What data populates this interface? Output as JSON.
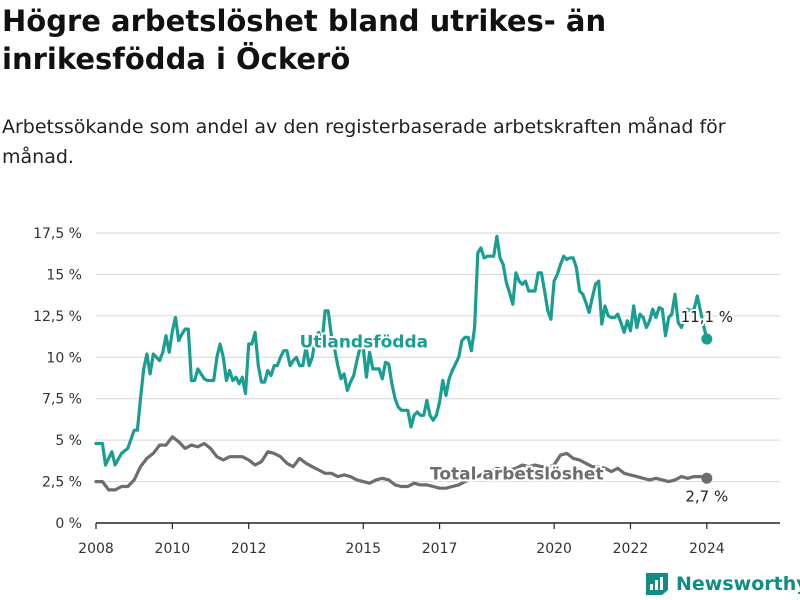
{
  "title": "Högre arbetslöshet bland utrikes- än inrikesfödda i Öckerö",
  "subtitle": "Arbetssökande som andel av den registerbaserade arbetskraften månad för månad.",
  "brand": "Newsworthy",
  "colors": {
    "utlandsfodda": "#1a9e91",
    "total": "#6d6d70",
    "brand": "#138c83"
  },
  "chart_data": {
    "type": "line",
    "title": "Högre arbetslöshet bland utrikes- än inrikesfödda i Öckerö",
    "subtitle": "Arbetssökande som andel av den registerbaserade arbetskraften månad för månad.",
    "xlabel": "",
    "ylabel": "",
    "xlim": [
      "2008-01",
      "2025-12"
    ],
    "ylim": [
      0,
      17.5
    ],
    "yticks": [
      0,
      2.5,
      5,
      7.5,
      10,
      12.5,
      15,
      17.5
    ],
    "ytick_labels": [
      "0 %",
      "2,5 %",
      "5 %",
      "7,5 %",
      "10 %",
      "12,5 %",
      "15 %",
      "17,5 %"
    ],
    "xticks": [
      "2008-01",
      "2010-01",
      "2012-01",
      "2015-01",
      "2017-01",
      "2020-01",
      "2022-01",
      "2024-01"
    ],
    "xtick_labels": [
      "2008",
      "2010",
      "2012",
      "2015",
      "2017",
      "2020",
      "2022",
      "2024"
    ],
    "grid": "horizontal",
    "series": [
      {
        "name": "Utlandsfödda",
        "label_at": "2013-05",
        "last_value_label": "11,1 %",
        "points": [
          [
            "2008-01",
            4.8
          ],
          [
            "2008-03",
            4.8
          ],
          [
            "2008-04",
            3.5
          ],
          [
            "2008-06",
            4.3
          ],
          [
            "2008-07",
            3.5
          ],
          [
            "2008-09",
            4.2
          ],
          [
            "2008-11",
            4.5
          ],
          [
            "2009-01",
            5.6
          ],
          [
            "2009-02",
            5.6
          ],
          [
            "2009-03",
            7.5
          ],
          [
            "2009-04",
            9.3
          ],
          [
            "2009-05",
            10.2
          ],
          [
            "2009-06",
            9.0
          ],
          [
            "2009-07",
            10.2
          ],
          [
            "2009-09",
            9.8
          ],
          [
            "2009-10",
            10.3
          ],
          [
            "2009-11",
            11.3
          ],
          [
            "2009-12",
            10.3
          ],
          [
            "2010-01",
            11.6
          ],
          [
            "2010-02",
            12.4
          ],
          [
            "2010-03",
            11.0
          ],
          [
            "2010-04",
            11.4
          ],
          [
            "2010-05",
            11.7
          ],
          [
            "2010-06",
            11.7
          ],
          [
            "2010-07",
            8.6
          ],
          [
            "2010-08",
            8.6
          ],
          [
            "2010-09",
            9.3
          ],
          [
            "2010-10",
            9.0
          ],
          [
            "2010-11",
            8.7
          ],
          [
            "2010-12",
            8.6
          ],
          [
            "2011-02",
            8.6
          ],
          [
            "2011-03",
            10.0
          ],
          [
            "2011-04",
            10.8
          ],
          [
            "2011-05",
            10.0
          ],
          [
            "2011-06",
            8.6
          ],
          [
            "2011-07",
            9.2
          ],
          [
            "2011-08",
            8.6
          ],
          [
            "2011-09",
            8.8
          ],
          [
            "2011-10",
            8.4
          ],
          [
            "2011-11",
            8.8
          ],
          [
            "2011-12",
            7.8
          ],
          [
            "2012-01",
            10.8
          ],
          [
            "2012-02",
            10.8
          ],
          [
            "2012-03",
            11.5
          ],
          [
            "2012-04",
            9.5
          ],
          [
            "2012-05",
            8.5
          ],
          [
            "2012-06",
            8.5
          ],
          [
            "2012-07",
            9.2
          ],
          [
            "2012-08",
            8.9
          ],
          [
            "2012-09",
            9.5
          ],
          [
            "2012-10",
            9.5
          ],
          [
            "2012-11",
            10.0
          ],
          [
            "2012-12",
            10.4
          ],
          [
            "2013-01",
            10.4
          ],
          [
            "2013-02",
            9.5
          ],
          [
            "2013-03",
            9.8
          ],
          [
            "2013-04",
            10.0
          ],
          [
            "2013-05",
            9.5
          ],
          [
            "2013-06",
            9.5
          ],
          [
            "2013-07",
            10.6
          ],
          [
            "2013-08",
            9.5
          ],
          [
            "2013-09",
            10.0
          ],
          [
            "2013-10",
            11.2
          ],
          [
            "2013-11",
            11.5
          ],
          [
            "2013-12",
            10.8
          ],
          [
            "2014-01",
            12.8
          ],
          [
            "2014-02",
            12.8
          ],
          [
            "2014-03",
            11.3
          ],
          [
            "2014-04",
            10.5
          ],
          [
            "2014-05",
            9.5
          ],
          [
            "2014-06",
            8.7
          ],
          [
            "2014-07",
            9.0
          ],
          [
            "2014-08",
            8.0
          ],
          [
            "2014-09",
            8.5
          ],
          [
            "2014-10",
            8.9
          ],
          [
            "2014-11",
            9.8
          ],
          [
            "2014-12",
            10.6
          ],
          [
            "2015-01",
            10.6
          ],
          [
            "2015-02",
            8.8
          ],
          [
            "2015-03",
            10.3
          ],
          [
            "2015-04",
            9.3
          ],
          [
            "2015-05",
            9.3
          ],
          [
            "2015-06",
            9.3
          ],
          [
            "2015-07",
            8.7
          ],
          [
            "2015-08",
            9.7
          ],
          [
            "2015-09",
            9.6
          ],
          [
            "2015-10",
            8.4
          ],
          [
            "2015-11",
            7.5
          ],
          [
            "2015-12",
            7.0
          ],
          [
            "2016-01",
            6.8
          ],
          [
            "2016-02",
            6.8
          ],
          [
            "2016-03",
            6.8
          ],
          [
            "2016-04",
            5.8
          ],
          [
            "2016-05",
            6.5
          ],
          [
            "2016-06",
            6.7
          ],
          [
            "2016-07",
            6.5
          ],
          [
            "2016-08",
            6.5
          ],
          [
            "2016-09",
            7.4
          ],
          [
            "2016-10",
            6.5
          ],
          [
            "2016-11",
            6.2
          ],
          [
            "2016-12",
            6.5
          ],
          [
            "2017-01",
            7.3
          ],
          [
            "2017-02",
            8.6
          ],
          [
            "2017-03",
            7.7
          ],
          [
            "2017-04",
            8.7
          ],
          [
            "2017-05",
            9.2
          ],
          [
            "2017-06",
            9.6
          ],
          [
            "2017-07",
            10.0
          ],
          [
            "2017-08",
            11.0
          ],
          [
            "2017-09",
            11.2
          ],
          [
            "2017-10",
            11.2
          ],
          [
            "2017-11",
            10.4
          ],
          [
            "2017-12",
            11.8
          ],
          [
            "2018-01",
            16.3
          ],
          [
            "2018-02",
            16.6
          ],
          [
            "2018-03",
            16.0
          ],
          [
            "2018-04",
            16.1
          ],
          [
            "2018-05",
            16.1
          ],
          [
            "2018-06",
            16.1
          ],
          [
            "2018-07",
            17.3
          ],
          [
            "2018-08",
            16.0
          ],
          [
            "2018-09",
            15.6
          ],
          [
            "2018-10",
            14.5
          ],
          [
            "2018-11",
            13.9
          ],
          [
            "2018-12",
            13.2
          ],
          [
            "2019-01",
            15.1
          ],
          [
            "2019-02",
            14.6
          ],
          [
            "2019-03",
            14.4
          ],
          [
            "2019-04",
            14.6
          ],
          [
            "2019-05",
            14.0
          ],
          [
            "2019-06",
            14.0
          ],
          [
            "2019-07",
            14.0
          ],
          [
            "2019-08",
            15.1
          ],
          [
            "2019-09",
            15.1
          ],
          [
            "2019-10",
            14.0
          ],
          [
            "2019-11",
            12.8
          ],
          [
            "2019-12",
            12.3
          ],
          [
            "2020-01",
            14.6
          ],
          [
            "2020-02",
            15.0
          ],
          [
            "2020-03",
            15.6
          ],
          [
            "2020-04",
            16.1
          ],
          [
            "2020-05",
            15.9
          ],
          [
            "2020-06",
            16.0
          ],
          [
            "2020-07",
            16.0
          ],
          [
            "2020-08",
            15.4
          ],
          [
            "2020-09",
            14.0
          ],
          [
            "2020-10",
            13.8
          ],
          [
            "2020-11",
            13.3
          ],
          [
            "2020-12",
            12.7
          ],
          [
            "2021-01",
            13.6
          ],
          [
            "2021-02",
            14.4
          ],
          [
            "2021-03",
            14.6
          ],
          [
            "2021-04",
            12.0
          ],
          [
            "2021-05",
            13.1
          ],
          [
            "2021-06",
            12.5
          ],
          [
            "2021-07",
            12.4
          ],
          [
            "2021-08",
            12.4
          ],
          [
            "2021-09",
            12.6
          ],
          [
            "2021-10",
            12.1
          ],
          [
            "2021-11",
            11.5
          ],
          [
            "2021-12",
            12.2
          ],
          [
            "2022-01",
            11.6
          ],
          [
            "2022-02",
            13.1
          ],
          [
            "2022-03",
            11.8
          ],
          [
            "2022-04",
            12.6
          ],
          [
            "2022-05",
            12.4
          ],
          [
            "2022-06",
            11.8
          ],
          [
            "2022-07",
            12.2
          ],
          [
            "2022-08",
            12.9
          ],
          [
            "2022-09",
            12.4
          ],
          [
            "2022-10",
            13.0
          ],
          [
            "2022-11",
            12.9
          ],
          [
            "2022-12",
            11.3
          ],
          [
            "2023-01",
            12.4
          ],
          [
            "2023-02",
            12.6
          ],
          [
            "2023-03",
            13.8
          ],
          [
            "2023-04",
            12.1
          ],
          [
            "2023-05",
            11.8
          ],
          [
            "2023-06",
            12.4
          ],
          [
            "2023-07",
            12.9
          ],
          [
            "2023-08",
            12.8
          ],
          [
            "2023-09",
            12.9
          ],
          [
            "2023-10",
            13.7
          ],
          [
            "2023-11",
            12.8
          ],
          [
            "2023-12",
            11.9
          ],
          [
            "2024-01",
            11.1
          ]
        ]
      },
      {
        "name": "Total arbetslöshet",
        "label_at": "2016-10",
        "last_value_label": "2,7 %",
        "points": [
          [
            "2008-01",
            2.5
          ],
          [
            "2008-03",
            2.5
          ],
          [
            "2008-05",
            2.0
          ],
          [
            "2008-07",
            2.0
          ],
          [
            "2008-09",
            2.2
          ],
          [
            "2008-11",
            2.2
          ],
          [
            "2009-01",
            2.6
          ],
          [
            "2009-03",
            3.4
          ],
          [
            "2009-05",
            3.9
          ],
          [
            "2009-07",
            4.2
          ],
          [
            "2009-09",
            4.7
          ],
          [
            "2009-11",
            4.7
          ],
          [
            "2010-01",
            5.2
          ],
          [
            "2010-03",
            4.9
          ],
          [
            "2010-05",
            4.5
          ],
          [
            "2010-07",
            4.7
          ],
          [
            "2010-09",
            4.6
          ],
          [
            "2010-11",
            4.8
          ],
          [
            "2011-01",
            4.5
          ],
          [
            "2011-03",
            4.0
          ],
          [
            "2011-05",
            3.8
          ],
          [
            "2011-07",
            4.0
          ],
          [
            "2011-09",
            4.0
          ],
          [
            "2011-11",
            4.0
          ],
          [
            "2012-01",
            3.8
          ],
          [
            "2012-03",
            3.5
          ],
          [
            "2012-05",
            3.7
          ],
          [
            "2012-07",
            4.3
          ],
          [
            "2012-09",
            4.2
          ],
          [
            "2012-11",
            4.0
          ],
          [
            "2013-01",
            3.6
          ],
          [
            "2013-03",
            3.4
          ],
          [
            "2013-05",
            3.9
          ],
          [
            "2013-07",
            3.6
          ],
          [
            "2013-09",
            3.4
          ],
          [
            "2013-11",
            3.2
          ],
          [
            "2014-01",
            3.0
          ],
          [
            "2014-03",
            3.0
          ],
          [
            "2014-05",
            2.8
          ],
          [
            "2014-07",
            2.9
          ],
          [
            "2014-09",
            2.8
          ],
          [
            "2014-11",
            2.6
          ],
          [
            "2015-01",
            2.5
          ],
          [
            "2015-03",
            2.4
          ],
          [
            "2015-05",
            2.6
          ],
          [
            "2015-07",
            2.7
          ],
          [
            "2015-09",
            2.6
          ],
          [
            "2015-11",
            2.3
          ],
          [
            "2016-01",
            2.2
          ],
          [
            "2016-03",
            2.2
          ],
          [
            "2016-05",
            2.4
          ],
          [
            "2016-07",
            2.3
          ],
          [
            "2016-09",
            2.3
          ],
          [
            "2016-11",
            2.2
          ],
          [
            "2017-01",
            2.1
          ],
          [
            "2017-03",
            2.1
          ],
          [
            "2017-05",
            2.2
          ],
          [
            "2017-07",
            2.3
          ],
          [
            "2017-09",
            2.5
          ],
          [
            "2017-11",
            2.7
          ],
          [
            "2018-01",
            2.8
          ],
          [
            "2018-03",
            3.0
          ],
          [
            "2018-05",
            3.1
          ],
          [
            "2018-07",
            3.3
          ],
          [
            "2018-09",
            3.2
          ],
          [
            "2018-11",
            3.2
          ],
          [
            "2019-01",
            3.3
          ],
          [
            "2019-03",
            3.5
          ],
          [
            "2019-05",
            3.4
          ],
          [
            "2019-07",
            3.5
          ],
          [
            "2019-09",
            3.4
          ],
          [
            "2019-11",
            3.4
          ],
          [
            "2020-01",
            3.5
          ],
          [
            "2020-03",
            4.1
          ],
          [
            "2020-05",
            4.2
          ],
          [
            "2020-07",
            3.9
          ],
          [
            "2020-09",
            3.8
          ],
          [
            "2020-11",
            3.6
          ],
          [
            "2021-01",
            3.4
          ],
          [
            "2021-03",
            3.4
          ],
          [
            "2021-05",
            3.3
          ],
          [
            "2021-07",
            3.1
          ],
          [
            "2021-09",
            3.3
          ],
          [
            "2021-11",
            3.0
          ],
          [
            "2022-01",
            2.9
          ],
          [
            "2022-03",
            2.8
          ],
          [
            "2022-05",
            2.7
          ],
          [
            "2022-07",
            2.6
          ],
          [
            "2022-09",
            2.7
          ],
          [
            "2022-11",
            2.6
          ],
          [
            "2023-01",
            2.5
          ],
          [
            "2023-03",
            2.6
          ],
          [
            "2023-05",
            2.8
          ],
          [
            "2023-07",
            2.7
          ],
          [
            "2023-09",
            2.8
          ],
          [
            "2023-11",
            2.8
          ],
          [
            "2024-01",
            2.7
          ]
        ]
      }
    ]
  }
}
